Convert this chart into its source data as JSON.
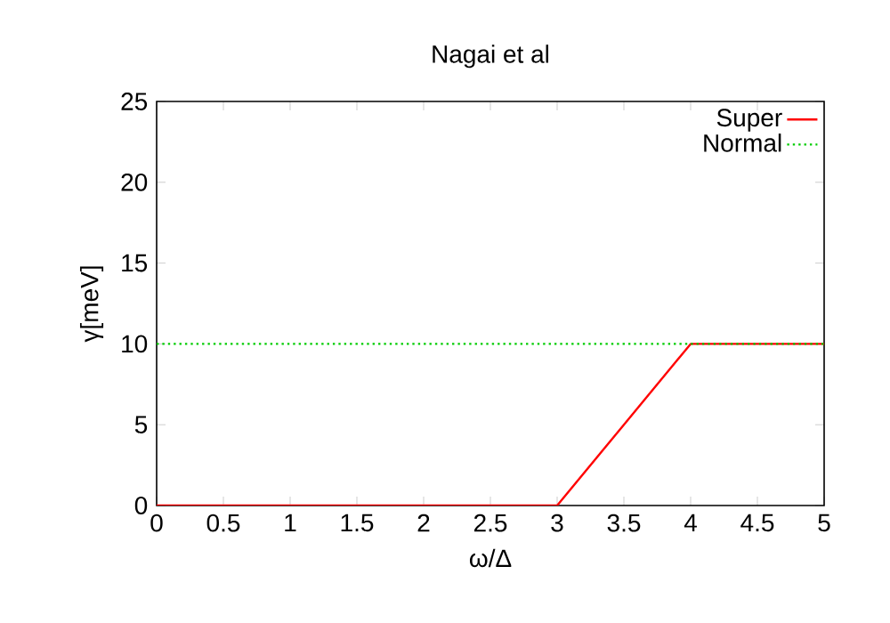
{
  "chart_data": {
    "type": "line",
    "title": "Nagai et al",
    "xlabel": "ω/Δ",
    "ylabel": "γ[meV]",
    "x": [
      0,
      0.5,
      1,
      1.5,
      2,
      2.5,
      3,
      3.5,
      4,
      4.5,
      5
    ],
    "series": [
      {
        "name": "Super",
        "color": "#ff0000",
        "line_style": "solid",
        "values": [
          0,
          0,
          0,
          0,
          0,
          0,
          0,
          5,
          10,
          10,
          10
        ]
      },
      {
        "name": "Normal",
        "color": "#00cc00",
        "line_style": "dotted",
        "values": [
          10,
          10,
          10,
          10,
          10,
          10,
          10,
          10,
          10,
          10,
          10
        ]
      }
    ],
    "xlim": [
      0,
      5
    ],
    "ylim": [
      0,
      25
    ],
    "xticks": [
      0,
      0.5,
      1,
      1.5,
      2,
      2.5,
      3,
      3.5,
      4,
      4.5,
      5
    ],
    "yticks": [
      0,
      5,
      10,
      15,
      20,
      25
    ],
    "grid": false,
    "legend": "top right",
    "marker": "none"
  }
}
